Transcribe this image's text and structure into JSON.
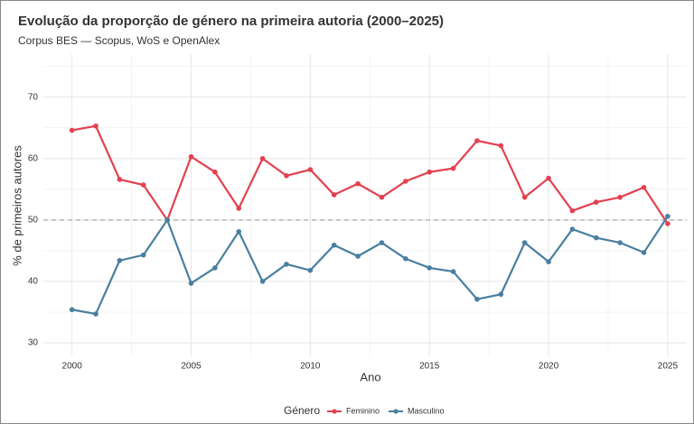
{
  "chart_data": {
    "type": "line",
    "title": "Evolução da proporção de género na primeira autoria (2000–2025)",
    "subtitle": "Corpus BES — Scopus, WoS e OpenAlex",
    "x_label": "Ano",
    "y_label": "% de primeiros autores",
    "legend_title": "Género",
    "x": [
      2000,
      2001,
      2002,
      2003,
      2004,
      2005,
      2006,
      2007,
      2008,
      2009,
      2010,
      2011,
      2012,
      2013,
      2014,
      2015,
      2016,
      2017,
      2018,
      2019,
      2020,
      2021,
      2022,
      2023,
      2024,
      2025
    ],
    "series": [
      {
        "name": "Feminino",
        "color": "#e3414f",
        "values": [
          64.6,
          65.3,
          56.6,
          55.7,
          50.0,
          60.3,
          57.8,
          51.9,
          60.0,
          57.2,
          58.2,
          54.1,
          55.9,
          53.7,
          56.3,
          57.8,
          58.4,
          62.9,
          62.1,
          53.7,
          56.8,
          51.5,
          52.9,
          53.7,
          55.3,
          49.4
        ]
      },
      {
        "name": "Masculino",
        "color": "#4a7fa0",
        "values": [
          35.4,
          34.7,
          43.4,
          44.3,
          50.0,
          39.7,
          42.2,
          48.1,
          40.0,
          42.8,
          41.8,
          45.9,
          44.1,
          46.3,
          43.7,
          42.2,
          41.6,
          37.1,
          37.9,
          46.3,
          43.2,
          48.5,
          47.1,
          46.3,
          44.7,
          50.6
        ]
      }
    ],
    "xlim": [
      1998.8,
      2025.8
    ],
    "xticks": [
      2000,
      2005,
      2010,
      2015,
      2020,
      2025
    ],
    "ylim": [
      27.8,
      77
    ],
    "yticks": [
      30,
      40,
      50,
      60,
      70
    ],
    "x_minor_ticks": [
      2002.5,
      2007.5,
      2012.5,
      2017.5,
      2022.5
    ],
    "y_minor_ticks": [
      35,
      45,
      55,
      65,
      75
    ],
    "reference_line": 50,
    "grid": true,
    "legend_position": "bottom"
  }
}
